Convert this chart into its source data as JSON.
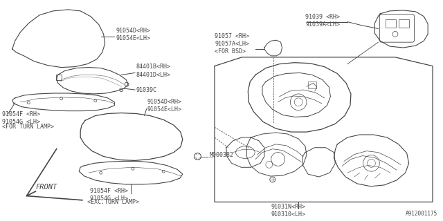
{
  "bg_color": "#ffffff",
  "line_color": "#444444",
  "text_color": "#444444",
  "diagram_id": "A912001175",
  "labels": {
    "mirror_top": [
      "91054D<RH>",
      "91054E<LH>"
    ],
    "turn_lamp": [
      "84401B<RH>",
      "84401D<LH>"
    ],
    "bracket": [
      "91039C"
    ],
    "cover_for_turn_top": [
      "91054F <RH>",
      "91054G <LH>"
    ],
    "for_turn_lamp": "<FOR TURN LAMP>",
    "cover_mid_top": [
      "91054D<RH>",
      "91054E<LH>"
    ],
    "bolt": "M000382",
    "cover_exc_turn_bot": [
      "91054F <RH>",
      "91054G <LH>"
    ],
    "exc_turn_lamp": "<EXC.TURN LAMP>",
    "front": "FRONT",
    "mirror_rh": [
      "91039 <RH>",
      "91039A<LH>"
    ],
    "bsd": [
      "91057 <RH>",
      "91057A<LH>",
      "<FOR BSD>"
    ],
    "mirror_assy": [
      "91031N<RH>",
      "910310<LH>"
    ]
  }
}
